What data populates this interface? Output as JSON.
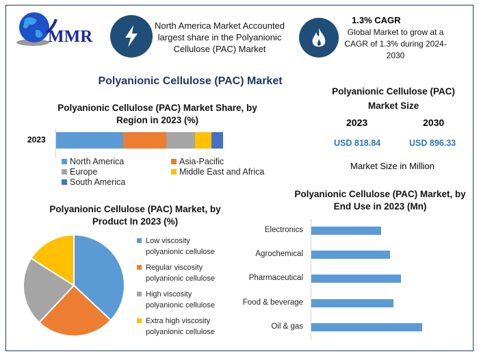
{
  "logo": {
    "text": "MMR"
  },
  "header": {
    "highlight_icon": "lightning-bolt-icon",
    "highlight_text": "North America Market Accounted largest share in the Polyanionic Cellulose (PAC) Market",
    "cagr_icon": "flame-icon",
    "cagr_title": "1.3% CAGR",
    "cagr_text": "Global Market to grow at a CAGR of 1.3% during 2024-2030"
  },
  "main_title": "Polyanionic Cellulose (PAC) Market",
  "market_size": {
    "title": "Polyanionic Cellulose (PAC) Market Size",
    "year1": "2023",
    "year2": "2030",
    "value1": "USD 818.84",
    "value2": "USD 896.33",
    "note": "Market Size in Million"
  },
  "colors": {
    "blue": "#5b9bd5",
    "orange": "#ed7d31",
    "gray": "#a5a5a5",
    "yellow": "#ffc000",
    "darkblue": "#4472c4",
    "navy": "#1f4e79",
    "value_blue": "#2e75b6"
  },
  "chart_data": [
    {
      "type": "bar",
      "orientation": "horizontal",
      "stacked": true,
      "title": "Polyanionic Cellulose (PAC) Market Share, by Region in 2023 (%)",
      "categories": [
        "2023"
      ],
      "series": [
        {
          "name": "North America",
          "values": [
            40
          ],
          "color": "#5b9bd5"
        },
        {
          "name": "Asia-Pacific",
          "values": [
            26
          ],
          "color": "#ed7d31"
        },
        {
          "name": "Europe",
          "values": [
            17
          ],
          "color": "#a5a5a5"
        },
        {
          "name": "Middle East and Africa",
          "values": [
            10
          ],
          "color": "#ffc000"
        },
        {
          "name": "South America",
          "values": [
            7
          ],
          "color": "#4472c4"
        }
      ],
      "legend": "bottom"
    },
    {
      "type": "pie",
      "title": "Polyanionic Cellulose (PAC) Market, by Product In 2023 (%)",
      "categories": [
        "Low viscosity polyanionic cellulose",
        "Regular viscosity polyanionic cellulose",
        "High viscosity polyanionic cellulose",
        "Extra high viscosity polyanionic cellulose"
      ],
      "values": [
        37,
        25,
        22,
        16
      ],
      "colors": [
        "#5b9bd5",
        "#ed7d31",
        "#a5a5a5",
        "#ffc000"
      ],
      "legend": "right"
    },
    {
      "type": "bar",
      "orientation": "horizontal",
      "title": "Polyanionic Cellulose (PAC) Market, by End Use in 2023 (Mn)",
      "categories": [
        "Electronics",
        "Agrochemical",
        "Pharmaceutical",
        "Food & beverage",
        "Oil & gas"
      ],
      "values": [
        132,
        150,
        170,
        156,
        210
      ],
      "color": "#5b9bd5",
      "xlim": [
        0,
        260
      ]
    }
  ]
}
